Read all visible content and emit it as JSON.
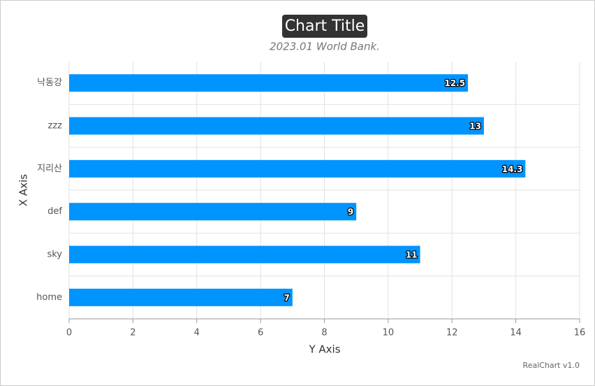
{
  "chart_data": {
    "type": "bar",
    "horizontal": true,
    "title": "Chart Title",
    "subtitle": "2023.01 World Bank.",
    "x_label": "X Axis",
    "y_label": "Y Axis",
    "credit": "RealChart v1.0",
    "categories": [
      "낙동강",
      "zzz",
      "지리산",
      "def",
      "sky",
      "home"
    ],
    "values": [
      12.5,
      13,
      14.3,
      9,
      11,
      7
    ],
    "color": "#0094ff",
    "ylim": [
      0,
      16
    ],
    "yticks": [
      0,
      2,
      4,
      6,
      8,
      10,
      12,
      14,
      16
    ],
    "grid": true
  }
}
